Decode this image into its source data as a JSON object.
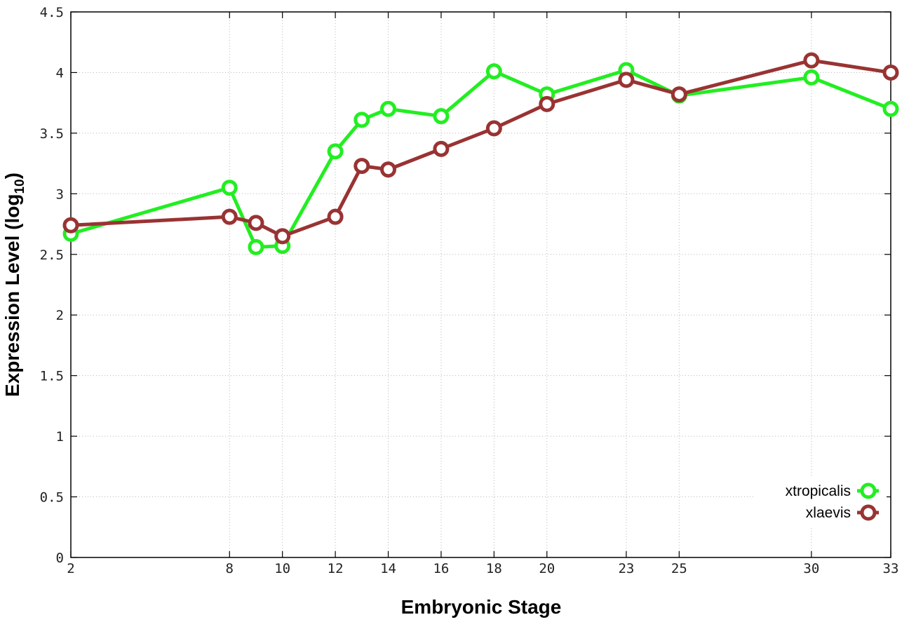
{
  "chart_data": {
    "type": "line",
    "xlabel": "Embryonic Stage",
    "ylabel_main": "Expression Level (log",
    "ylabel_sub": "10",
    "ylabel_close": ")",
    "xlim": [
      2,
      33
    ],
    "ylim": [
      0,
      4.5
    ],
    "x_ticks": [
      2,
      8,
      10,
      12,
      14,
      16,
      18,
      20,
      23,
      25,
      30,
      33
    ],
    "y_ticks": [
      0,
      0.5,
      1,
      1.5,
      2,
      2.5,
      3,
      3.5,
      4,
      4.5
    ],
    "y_tick_labels": [
      "0",
      "0.5",
      "1",
      "1.5",
      "2",
      "2.5",
      "3",
      "3.5",
      "4",
      "4.5"
    ],
    "x_vgrid": [
      8,
      10,
      12,
      14,
      16,
      18,
      20,
      23,
      25,
      30
    ],
    "grid": true,
    "legend_position": "bottom-right",
    "series": [
      {
        "name": "xtropicalis",
        "color": "#22ee22",
        "x": [
          2,
          8,
          9,
          10,
          12,
          13,
          14,
          16,
          18,
          20,
          23,
          25,
          30,
          33
        ],
        "y": [
          2.67,
          3.05,
          2.56,
          2.57,
          3.35,
          3.61,
          3.7,
          3.64,
          4.01,
          3.82,
          4.02,
          3.81,
          3.96,
          3.7
        ]
      },
      {
        "name": "xlaevis",
        "color": "#993333",
        "x": [
          2,
          8,
          9,
          10,
          12,
          13,
          14,
          16,
          18,
          20,
          23,
          25,
          30,
          33
        ],
        "y": [
          2.74,
          2.81,
          2.76,
          2.65,
          2.81,
          3.23,
          3.2,
          3.37,
          3.54,
          3.74,
          3.94,
          3.82,
          4.1,
          4.0
        ]
      }
    ]
  }
}
